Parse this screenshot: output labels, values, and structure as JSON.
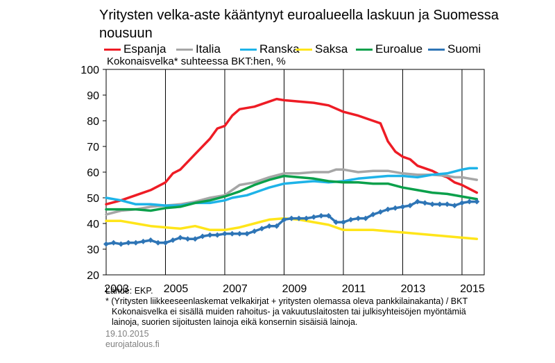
{
  "title": "Yritysten velka-aste kääntynyt euroalueella laskuun ja Suomessa nousuun",
  "subtitle": "Kokonaisvelka*  suhteessa BKT:hen, %",
  "footer": {
    "source": "Lähde: EKP.",
    "note1": "* (Yritysten liikkeeseenlaskemat velkakirjat + yritysten olemassa oleva pankkilainakanta)  / BKT",
    "note2": "Kokonaisvelka ei sisällä muiden rahoitus- ja vakuutuslaitosten tai julkisyhteisöjen myöntämiä",
    "note3": "lainoja, suorien sijoitusten lainoja eikä konsernin sisäisiä lainoja.",
    "date": "19.10.2015",
    "site": "eurojatalous.fi"
  },
  "chart_data": {
    "type": "line",
    "title": "Yritysten velka-aste kääntynyt euroalueella laskuun ja Suomessa nousuun",
    "ylabel": "Kokonaisvelka*  suhteessa BKT:hen, %",
    "xlim": [
      2003,
      2015.75
    ],
    "ylim": [
      20,
      100
    ],
    "yticks": [
      20,
      30,
      40,
      50,
      60,
      70,
      80,
      90,
      100
    ],
    "xticks": [
      2003,
      2005,
      2007,
      2009,
      2011,
      2013,
      2015
    ],
    "xtick_labels": [
      "2003",
      "2005",
      "2007",
      "2009",
      "2011",
      "2013",
      "2015"
    ],
    "grid": "vertical",
    "legend_position": "top",
    "series": [
      {
        "name": "Espanja",
        "color": "#ee1c25",
        "marker": false,
        "values": [
          [
            2003.0,
            47.5
          ],
          [
            2003.5,
            49
          ],
          [
            2004.0,
            51
          ],
          [
            2004.5,
            53
          ],
          [
            2005.0,
            56
          ],
          [
            2005.25,
            59.5
          ],
          [
            2005.5,
            61
          ],
          [
            2006.0,
            67
          ],
          [
            2006.5,
            73
          ],
          [
            2006.75,
            77
          ],
          [
            2007.0,
            78
          ],
          [
            2007.25,
            82
          ],
          [
            2007.5,
            84.5
          ],
          [
            2008.0,
            85.5
          ],
          [
            2008.5,
            87.5
          ],
          [
            2008.75,
            88.5
          ],
          [
            2009.0,
            88
          ],
          [
            2009.5,
            87.5
          ],
          [
            2010.0,
            87
          ],
          [
            2010.5,
            86
          ],
          [
            2011.0,
            83.5
          ],
          [
            2011.5,
            82
          ],
          [
            2012.0,
            80
          ],
          [
            2012.25,
            79
          ],
          [
            2012.5,
            72
          ],
          [
            2012.75,
            68
          ],
          [
            2013.0,
            66
          ],
          [
            2013.25,
            65
          ],
          [
            2013.5,
            62.5
          ],
          [
            2014.0,
            60.5
          ],
          [
            2014.25,
            59
          ],
          [
            2014.5,
            58
          ],
          [
            2014.75,
            56
          ],
          [
            2015.0,
            55
          ],
          [
            2015.25,
            53.5
          ],
          [
            2015.5,
            52
          ]
        ]
      },
      {
        "name": "Italia",
        "color": "#a6a6a6",
        "marker": false,
        "values": [
          [
            2003.0,
            43.5
          ],
          [
            2003.5,
            45
          ],
          [
            2004.0,
            45.5
          ],
          [
            2004.5,
            46.5
          ],
          [
            2005.0,
            47
          ],
          [
            2005.5,
            47.5
          ],
          [
            2006.0,
            48.5
          ],
          [
            2006.5,
            50
          ],
          [
            2007.0,
            51
          ],
          [
            2007.5,
            55
          ],
          [
            2008.0,
            56
          ],
          [
            2008.5,
            58
          ],
          [
            2009.0,
            59.5
          ],
          [
            2009.5,
            59.5
          ],
          [
            2010.0,
            60
          ],
          [
            2010.5,
            60
          ],
          [
            2010.75,
            61
          ],
          [
            2011.0,
            61
          ],
          [
            2011.5,
            60
          ],
          [
            2012.0,
            60.5
          ],
          [
            2012.5,
            60.5
          ],
          [
            2013.0,
            59.5
          ],
          [
            2013.5,
            59
          ],
          [
            2014.0,
            59
          ],
          [
            2014.5,
            58.5
          ],
          [
            2014.75,
            58
          ],
          [
            2015.0,
            58
          ],
          [
            2015.25,
            57.5
          ],
          [
            2015.5,
            57
          ]
        ]
      },
      {
        "name": "Ranska",
        "color": "#1eb3e8",
        "marker": false,
        "values": [
          [
            2003.0,
            50
          ],
          [
            2003.5,
            49
          ],
          [
            2004.0,
            47.5
          ],
          [
            2004.5,
            47.5
          ],
          [
            2005.0,
            47
          ],
          [
            2005.5,
            47
          ],
          [
            2006.0,
            48
          ],
          [
            2006.5,
            48
          ],
          [
            2007.0,
            49
          ],
          [
            2007.25,
            50
          ],
          [
            2007.75,
            51
          ],
          [
            2008.0,
            52
          ],
          [
            2008.5,
            54
          ],
          [
            2009.0,
            55.5
          ],
          [
            2009.5,
            56
          ],
          [
            2010.0,
            56.5
          ],
          [
            2010.5,
            56
          ],
          [
            2011.0,
            56.5
          ],
          [
            2011.5,
            57.5
          ],
          [
            2012.0,
            58
          ],
          [
            2012.5,
            58.5
          ],
          [
            2013.0,
            58.5
          ],
          [
            2013.5,
            58
          ],
          [
            2014.0,
            59
          ],
          [
            2014.5,
            59.5
          ],
          [
            2015.0,
            61
          ],
          [
            2015.25,
            61.5
          ],
          [
            2015.5,
            61.5
          ]
        ]
      },
      {
        "name": "Saksa",
        "color": "#ffe51a",
        "marker": false,
        "values": [
          [
            2003.0,
            41
          ],
          [
            2003.5,
            41
          ],
          [
            2004.0,
            40
          ],
          [
            2004.5,
            39
          ],
          [
            2005.0,
            38.5
          ],
          [
            2005.5,
            38
          ],
          [
            2006.0,
            39
          ],
          [
            2006.5,
            37.5
          ],
          [
            2007.0,
            37.5
          ],
          [
            2007.5,
            38.5
          ],
          [
            2008.0,
            40
          ],
          [
            2008.5,
            41.5
          ],
          [
            2009.0,
            42
          ],
          [
            2009.5,
            41.5
          ],
          [
            2010.0,
            40.5
          ],
          [
            2010.5,
            39.5
          ],
          [
            2011.0,
            37.5
          ],
          [
            2011.5,
            37.5
          ],
          [
            2012.0,
            37.5
          ],
          [
            2012.5,
            37
          ],
          [
            2013.0,
            36.5
          ],
          [
            2013.5,
            36
          ],
          [
            2014.0,
            35.5
          ],
          [
            2014.5,
            35
          ],
          [
            2015.0,
            34.5
          ],
          [
            2015.5,
            34
          ]
        ]
      },
      {
        "name": "Euroalue",
        "color": "#0aa04b",
        "marker": false,
        "values": [
          [
            2003.0,
            45.5
          ],
          [
            2003.5,
            45.5
          ],
          [
            2004.0,
            45.5
          ],
          [
            2004.5,
            45
          ],
          [
            2005.0,
            46
          ],
          [
            2005.5,
            46.5
          ],
          [
            2006.0,
            48
          ],
          [
            2006.5,
            49
          ],
          [
            2007.0,
            50.5
          ],
          [
            2007.5,
            52.5
          ],
          [
            2008.0,
            55
          ],
          [
            2008.5,
            57
          ],
          [
            2009.0,
            58.5
          ],
          [
            2009.5,
            58
          ],
          [
            2010.0,
            57.5
          ],
          [
            2010.5,
            56.5
          ],
          [
            2011.0,
            56
          ],
          [
            2011.5,
            56
          ],
          [
            2012.0,
            55.5
          ],
          [
            2012.5,
            55.5
          ],
          [
            2013.0,
            54
          ],
          [
            2013.5,
            53
          ],
          [
            2014.0,
            52
          ],
          [
            2014.5,
            51.5
          ],
          [
            2015.0,
            50.5
          ],
          [
            2015.5,
            49.5
          ]
        ]
      },
      {
        "name": "Suomi",
        "color": "#2e75b6",
        "marker": true,
        "values": [
          [
            2003.0,
            32
          ],
          [
            2003.25,
            32.5
          ],
          [
            2003.5,
            32
          ],
          [
            2003.75,
            32.5
          ],
          [
            2004.0,
            32.5
          ],
          [
            2004.25,
            33
          ],
          [
            2004.5,
            33.5
          ],
          [
            2004.75,
            32.5
          ],
          [
            2005.0,
            32.5
          ],
          [
            2005.25,
            33.5
          ],
          [
            2005.5,
            34.5
          ],
          [
            2005.75,
            34
          ],
          [
            2006.0,
            34
          ],
          [
            2006.25,
            35
          ],
          [
            2006.5,
            35.5
          ],
          [
            2006.75,
            35.5
          ],
          [
            2007.0,
            36
          ],
          [
            2007.25,
            36
          ],
          [
            2007.5,
            36
          ],
          [
            2007.75,
            36
          ],
          [
            2008.0,
            37
          ],
          [
            2008.25,
            38
          ],
          [
            2008.5,
            39
          ],
          [
            2008.75,
            39
          ],
          [
            2009.0,
            41.5
          ],
          [
            2009.25,
            42
          ],
          [
            2009.5,
            42
          ],
          [
            2009.75,
            42
          ],
          [
            2010.0,
            42.5
          ],
          [
            2010.25,
            43
          ],
          [
            2010.5,
            43
          ],
          [
            2010.75,
            40.5
          ],
          [
            2011.0,
            40.5
          ],
          [
            2011.25,
            41.5
          ],
          [
            2011.5,
            42
          ],
          [
            2011.75,
            42
          ],
          [
            2012.0,
            43.5
          ],
          [
            2012.25,
            44.5
          ],
          [
            2012.5,
            45.5
          ],
          [
            2012.75,
            46
          ],
          [
            2013.0,
            46.5
          ],
          [
            2013.25,
            47
          ],
          [
            2013.5,
            48.5
          ],
          [
            2013.75,
            48
          ],
          [
            2014.0,
            47.5
          ],
          [
            2014.25,
            47.5
          ],
          [
            2014.5,
            47.5
          ],
          [
            2014.75,
            47
          ],
          [
            2015.0,
            48
          ],
          [
            2015.25,
            48.5
          ],
          [
            2015.5,
            48.5
          ]
        ]
      }
    ]
  }
}
